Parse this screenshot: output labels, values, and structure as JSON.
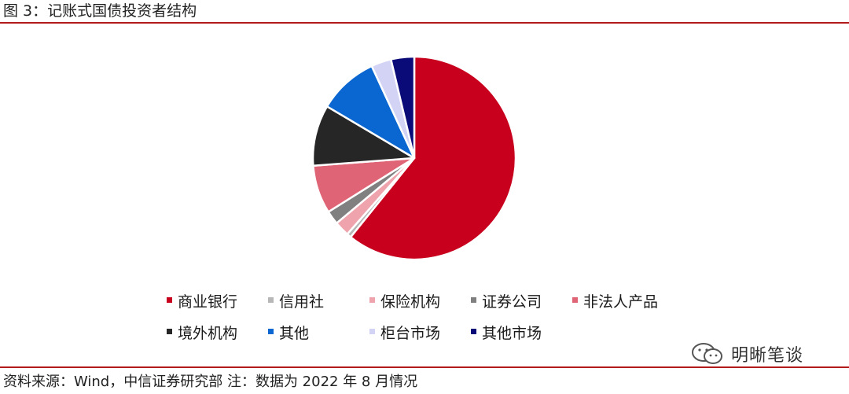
{
  "title": "图 3：记账式国债投资者结构",
  "source_note": "资料来源：Wind，中信证券研究部 注：数据为 2022 年 8 月情况",
  "watermark": {
    "text": "明晰笔谈",
    "icon": "wechat-icon"
  },
  "chart_data": {
    "type": "pie",
    "title": "",
    "legend_position": "bottom",
    "slices": [
      {
        "name": "商业银行",
        "value": 60.8,
        "color": "#c8001e"
      },
      {
        "name": "信用社",
        "value": 0.7,
        "color": "#b7b7b7"
      },
      {
        "name": "保险机构",
        "value": 2.4,
        "color": "#efa3ad"
      },
      {
        "name": "证券公司",
        "value": 2.2,
        "color": "#808080"
      },
      {
        "name": "非法人产品",
        "value": 7.7,
        "color": "#df6475"
      },
      {
        "name": "境外机构",
        "value": 9.7,
        "color": "#262626"
      },
      {
        "name": "其他",
        "value": 9.6,
        "color": "#0a66d0"
      },
      {
        "name": "柜台市场",
        "value": 3.2,
        "color": "#d3d3f5"
      },
      {
        "name": "其他市场",
        "value": 3.7,
        "color": "#0a0a78"
      }
    ]
  }
}
